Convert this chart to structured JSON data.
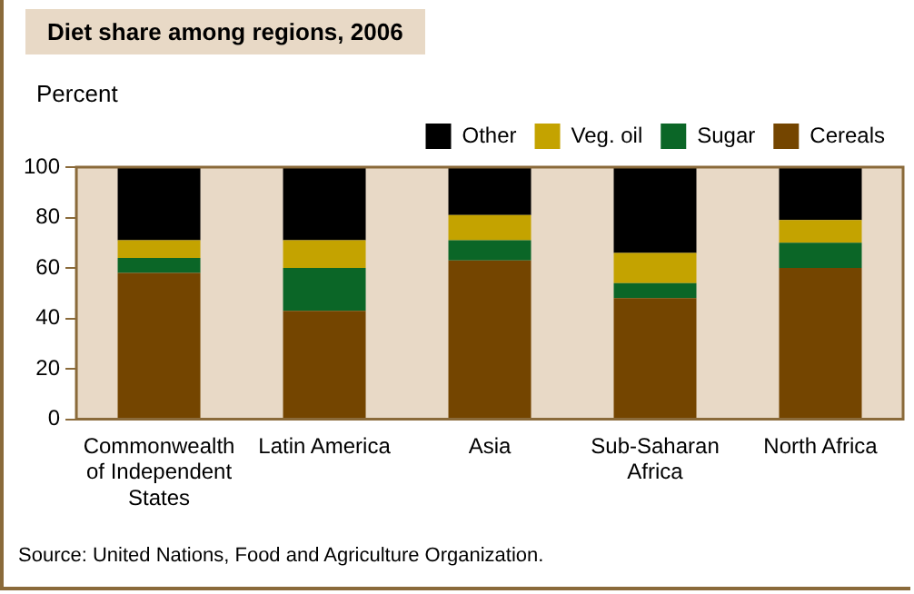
{
  "chart_data": {
    "type": "bar",
    "title": "Diet share among regions, 2006",
    "ylabel": "Percent",
    "stacked": true,
    "categories": [
      "Commonwealth of Independent States",
      "Latin America",
      "Asia",
      "Sub-Saharan Africa",
      "North Africa"
    ],
    "series": [
      {
        "name": "Cereals",
        "color": "#744500",
        "values": [
          58,
          43,
          63,
          48,
          60
        ]
      },
      {
        "name": "Sugar",
        "color": "#0b6627",
        "values": [
          6,
          17,
          8,
          6,
          10
        ]
      },
      {
        "name": "Veg. oil",
        "color": "#c4a300",
        "values": [
          7,
          11,
          10,
          12,
          9
        ]
      },
      {
        "name": "Other",
        "color": "#000000",
        "values": [
          29,
          29,
          19,
          34,
          21
        ]
      }
    ],
    "ylim": [
      0,
      100
    ],
    "yticks": [
      0,
      20,
      40,
      60,
      80,
      100
    ],
    "grid": false,
    "legend": "top right",
    "annotations": [
      "Source:  United Nations, Food and Agriculture Organization."
    ]
  }
}
